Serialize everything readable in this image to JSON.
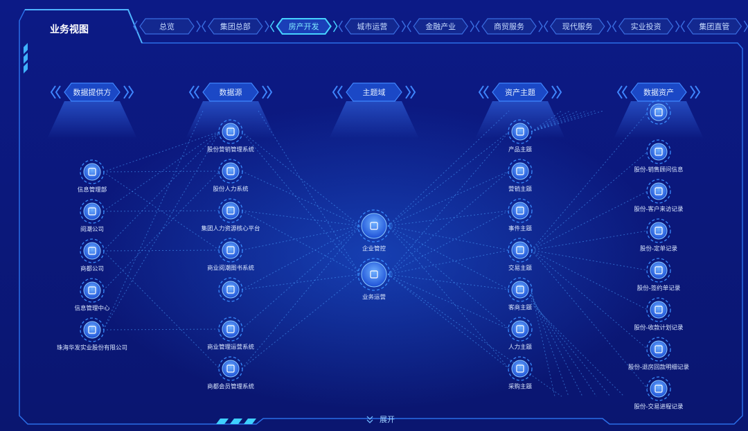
{
  "header": {
    "title": "业务视图",
    "tabs": [
      "总览",
      "集团总部",
      "房产开发",
      "城市运营",
      "金融产业",
      "商贸服务",
      "现代服务",
      "实业投资",
      "集团直管"
    ],
    "active_tab": 2
  },
  "columns": [
    {
      "title": "数据提供方",
      "nodes": [
        "信息管理部",
        "阅潮公司",
        "商都公司",
        "信息管理中心",
        "珠海华发实业股份有限公司"
      ]
    },
    {
      "title": "数据源",
      "nodes": [
        "股份营销管理系统",
        "股份人力系统",
        "集团人力资源核心平台",
        "商业阅潮图书系统",
        "商业管理运营系统",
        "商都会员管理系统"
      ]
    },
    {
      "title": "主题域",
      "nodes": [
        "企业管控",
        "业务运营"
      ]
    },
    {
      "title": "资产主题",
      "nodes": [
        "产品主题",
        "营销主题",
        "事件主题",
        "交易主题",
        "客商主题",
        "人力主题",
        "采购主题"
      ]
    },
    {
      "title": "数据资产",
      "nodes": [
        "股份-销售顾问信息",
        "股份-客户来访记录",
        "股份-定单记录",
        "股份-签约单记录",
        "股份-收款计划记录",
        "股份-退房回款明细记录",
        "股份-交易进程记录"
      ]
    }
  ],
  "footer": {
    "expand": "展开"
  }
}
